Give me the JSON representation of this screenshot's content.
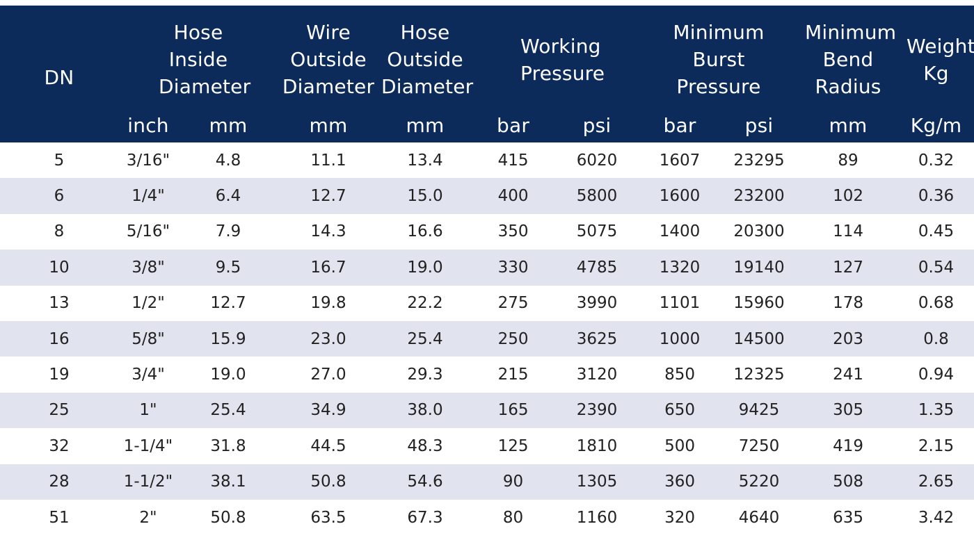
{
  "table": {
    "header": {
      "dn": "DN",
      "hose_inside_diameter": "Hose Inside Diameter",
      "wire_outside_diameter": "Wire Outside Diameter",
      "hose_outside_diameter": "Hose Outside Diameter",
      "working_pressure": "Working Pressure",
      "minimum_burst_pressure": "Minimum Burst Pressure",
      "minimum_bend_radius": "Minimum Bend Radius",
      "weight": "Weight Kg"
    },
    "units": [
      "inch",
      "mm",
      "mm",
      "mm",
      "bar",
      "psi",
      "bar",
      "psi",
      "mm",
      "Kg/m"
    ],
    "rows": [
      [
        "5",
        "3/16\"",
        "4.8",
        "11.1",
        "13.4",
        "415",
        "6020",
        "1607",
        "23295",
        "89",
        "0.32"
      ],
      [
        "6",
        "1/4\"",
        "6.4",
        "12.7",
        "15.0",
        "400",
        "5800",
        "1600",
        "23200",
        "102",
        "0.36"
      ],
      [
        "8",
        "5/16\"",
        "7.9",
        "14.3",
        "16.6",
        "350",
        "5075",
        "1400",
        "20300",
        "114",
        "0.45"
      ],
      [
        "10",
        "3/8\"",
        "9.5",
        "16.7",
        "19.0",
        "330",
        "4785",
        "1320",
        "19140",
        "127",
        "0.54"
      ],
      [
        "13",
        "1/2\"",
        "12.7",
        "19.8",
        "22.2",
        "275",
        "3990",
        "1101",
        "15960",
        "178",
        "0.68"
      ],
      [
        "16",
        "5/8\"",
        "15.9",
        "23.0",
        "25.4",
        "250",
        "3625",
        "1000",
        "14500",
        "203",
        "0.8"
      ],
      [
        "19",
        "3/4\"",
        "19.0",
        "27.0",
        "29.3",
        "215",
        "3120",
        "850",
        "12325",
        "241",
        "0.94"
      ],
      [
        "25",
        "1\"",
        "25.4",
        "34.9",
        "38.0",
        "165",
        "2390",
        "650",
        "9425",
        "305",
        "1.35"
      ],
      [
        "32",
        "1-1/4\"",
        "31.8",
        "44.5",
        "48.3",
        "125",
        "1810",
        "500",
        "7250",
        "419",
        "2.15"
      ],
      [
        "28",
        "1-1/2\"",
        "38.1",
        "50.8",
        "54.6",
        "90",
        "1305",
        "360",
        "5220",
        "508",
        "2.65"
      ],
      [
        "51",
        "2\"",
        "50.8",
        "63.5",
        "67.3",
        "80",
        "1160",
        "320",
        "4640",
        "635",
        "3.42"
      ]
    ]
  },
  "colors": {
    "header_background": "#0c2b5b",
    "header_text": "#ffffff",
    "stripe_row": "#e1e3ef",
    "plain_row": "#ffffff",
    "body_text": "#222222"
  }
}
